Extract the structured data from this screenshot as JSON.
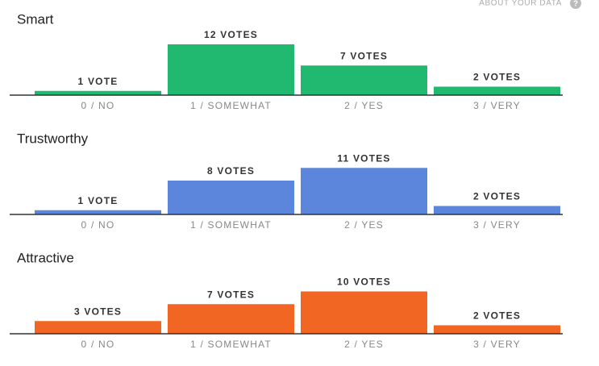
{
  "header_link": "ABOUT YOUR DATA",
  "help_icon": "?",
  "chart_data": [
    {
      "type": "bar",
      "title": "Smart",
      "categories": [
        "0 / NO",
        "1 / SOMEWHAT",
        "2 / YES",
        "3 / VERY"
      ],
      "values": [
        1,
        12,
        7,
        2
      ],
      "value_labels": [
        "1 VOTE",
        "12 VOTES",
        "7 VOTES",
        "2 VOTES"
      ],
      "color": "#21b96f"
    },
    {
      "type": "bar",
      "title": "Trustworthy",
      "categories": [
        "0 / NO",
        "1 / SOMEWHAT",
        "2 / YES",
        "3 / VERY"
      ],
      "values": [
        1,
        8,
        11,
        2
      ],
      "value_labels": [
        "1 VOTE",
        "8 VOTES",
        "11 VOTES",
        "2 VOTES"
      ],
      "color": "#5b86dc"
    },
    {
      "type": "bar",
      "title": "Attractive",
      "categories": [
        "0 / NO",
        "1 / SOMEWHAT",
        "2 / YES",
        "3 / VERY"
      ],
      "values": [
        3,
        7,
        10,
        2
      ],
      "value_labels": [
        "3 VOTES",
        "7 VOTES",
        "10 VOTES",
        "2 VOTES"
      ],
      "color": "#f26624"
    }
  ]
}
